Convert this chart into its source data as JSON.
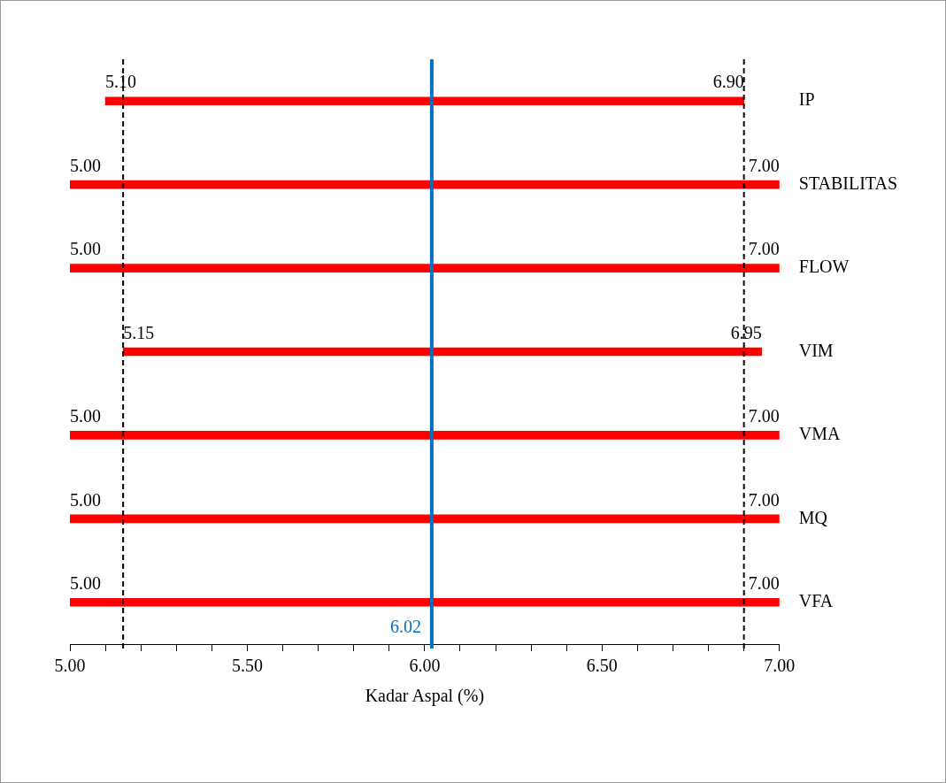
{
  "chart_data": {
    "type": "bar",
    "orientation": "horizontal",
    "xlabel": "Kadar Aspal (%)",
    "categories": [
      "IP",
      "STABILITAS",
      "FLOW",
      "VIM",
      "VMA",
      "MQ",
      "VFA"
    ],
    "base": [
      5.1,
      5.0,
      5.0,
      5.15,
      5.0,
      5.0,
      5.0
    ],
    "values": [
      1.8,
      2.0,
      2.0,
      1.8,
      2.0,
      2.0,
      2.0
    ],
    "color": "#ff0000",
    "xlim": [
      5.0,
      7.0
    ],
    "xticks": [
      {
        "value": 5.0,
        "label": "5.00"
      },
      {
        "value": 5.1,
        "label": null
      },
      {
        "value": 5.2,
        "label": null
      },
      {
        "value": 5.3,
        "label": null
      },
      {
        "value": 5.4,
        "label": null
      },
      {
        "value": 5.5,
        "label": "5.50"
      },
      {
        "value": 5.6,
        "label": null
      },
      {
        "value": 5.7,
        "label": null
      },
      {
        "value": 5.8,
        "label": null
      },
      {
        "value": 5.9,
        "label": null
      },
      {
        "value": 6.0,
        "label": "6.00"
      },
      {
        "value": 6.1,
        "label": null
      },
      {
        "value": 6.2,
        "label": null
      },
      {
        "value": 6.3,
        "label": null
      },
      {
        "value": 6.4,
        "label": null
      },
      {
        "value": 6.5,
        "label": "6.50"
      },
      {
        "value": 6.6,
        "label": null
      },
      {
        "value": 6.7,
        "label": null
      },
      {
        "value": 6.8,
        "label": null
      },
      {
        "value": 6.9,
        "label": null
      },
      {
        "value": 7.0,
        "label": "7.00"
      }
    ],
    "ref_lines": [
      {
        "axis": "x",
        "value": 6.02,
        "label": "6.02",
        "color": "#0070c0",
        "line_style": "solid"
      },
      {
        "axis": "x",
        "value": 5.15,
        "color": "#000000",
        "line_style": "dashed"
      },
      {
        "axis": "x",
        "value": 6.9,
        "color": "#000000",
        "line_style": "dashed"
      }
    ],
    "annotations": [
      {
        "text": "5.10",
        "x": 5.1,
        "y": "IP"
      },
      {
        "text": "6.90",
        "x": 6.9,
        "y": "IP"
      },
      {
        "text": "5.00",
        "x": 5.0,
        "y": "STABILITAS"
      },
      {
        "text": "7.00",
        "x": 7.0,
        "y": "STABILITAS"
      },
      {
        "text": "5.00",
        "x": 5.0,
        "y": "FLOW"
      },
      {
        "text": "7.00",
        "x": 7.0,
        "y": "FLOW"
      },
      {
        "text": "5.15",
        "x": 5.15,
        "y": "VIM"
      },
      {
        "text": "6.95",
        "x": 6.95,
        "y": "VIM"
      },
      {
        "text": "5.00",
        "x": 5.0,
        "y": "VMA"
      },
      {
        "text": "7.00",
        "x": 7.0,
        "y": "VMA"
      },
      {
        "text": "5.00",
        "x": 5.0,
        "y": "MQ"
      },
      {
        "text": "7.00",
        "x": 7.0,
        "y": "MQ"
      },
      {
        "text": "5.00",
        "x": 5.0,
        "y": "VFA"
      },
      {
        "text": "7.00",
        "x": 7.0,
        "y": "VFA"
      }
    ],
    "grid": false,
    "legend": false
  }
}
